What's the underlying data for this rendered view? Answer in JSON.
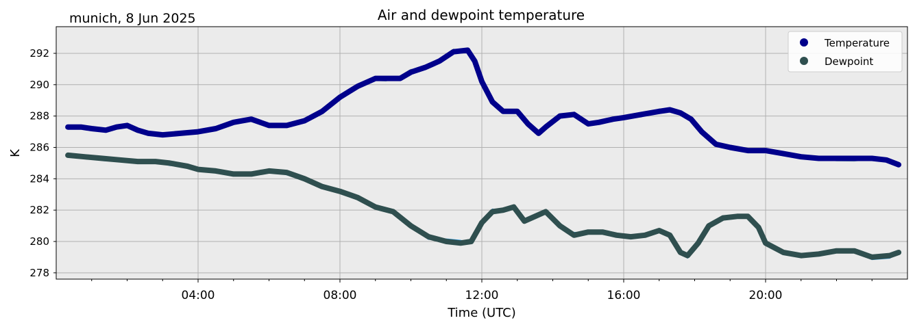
{
  "location_date": "munich, 8 Jun 2025",
  "chart_data": {
    "type": "line",
    "title": "Air and dewpoint temperature",
    "xlabel": "Time (UTC)",
    "ylabel": "K",
    "xlim": [
      0,
      24
    ],
    "ylim": [
      277.6,
      293.7
    ],
    "xticks": [
      "04:00",
      "08:00",
      "12:00",
      "16:00",
      "20:00"
    ],
    "xtick_hours": [
      4,
      8,
      12,
      16,
      20
    ],
    "yticks": [
      278,
      280,
      282,
      284,
      286,
      288,
      290,
      292
    ],
    "grid": true,
    "legend_position": "top-right",
    "series": [
      {
        "name": "Temperature",
        "color": "#00008b",
        "raw_color": "#7fa8a8",
        "x": [
          0.33,
          0.7,
          1.0,
          1.4,
          1.7,
          2.0,
          2.3,
          2.6,
          3.0,
          3.5,
          4.0,
          4.5,
          5.0,
          5.5,
          6.0,
          6.5,
          7.0,
          7.5,
          8.0,
          8.5,
          9.0,
          9.3,
          9.7,
          10.0,
          10.4,
          10.8,
          11.2,
          11.6,
          11.8,
          12.0,
          12.3,
          12.6,
          13.0,
          13.3,
          13.6,
          13.8,
          14.2,
          14.6,
          15.0,
          15.3,
          15.7,
          16.0,
          16.5,
          17.0,
          17.3,
          17.6,
          17.9,
          18.2,
          18.6,
          19.0,
          19.5,
          20.0,
          20.5,
          21.0,
          21.5,
          22.0,
          22.5,
          23.0,
          23.4,
          23.75
        ],
        "y": [
          287.3,
          287.3,
          287.2,
          287.1,
          287.3,
          287.4,
          287.1,
          286.9,
          286.8,
          286.9,
          287.0,
          287.2,
          287.6,
          287.8,
          287.4,
          287.4,
          287.7,
          288.3,
          289.2,
          289.9,
          290.4,
          290.4,
          290.4,
          290.8,
          291.1,
          291.5,
          292.1,
          292.2,
          291.5,
          290.2,
          288.9,
          288.3,
          288.3,
          287.5,
          286.9,
          287.3,
          288.0,
          288.1,
          287.5,
          287.6,
          287.8,
          287.9,
          288.1,
          288.3,
          288.4,
          288.2,
          287.8,
          287.0,
          286.2,
          286.0,
          285.8,
          285.8,
          285.6,
          285.4,
          285.3,
          285.3,
          285.3,
          285.3,
          285.2,
          284.9
        ]
      },
      {
        "name": "Dewpoint",
        "color": "#2f4f4f",
        "raw_color": "#1e9be8",
        "x": [
          0.33,
          0.8,
          1.3,
          1.8,
          2.3,
          2.8,
          3.2,
          3.7,
          4.0,
          4.5,
          5.0,
          5.5,
          6.0,
          6.5,
          7.0,
          7.5,
          8.0,
          8.5,
          9.0,
          9.5,
          10.0,
          10.5,
          11.0,
          11.4,
          11.7,
          12.0,
          12.3,
          12.6,
          12.9,
          13.2,
          13.5,
          13.8,
          14.2,
          14.6,
          15.0,
          15.4,
          15.8,
          16.2,
          16.6,
          17.0,
          17.3,
          17.6,
          17.8,
          18.1,
          18.4,
          18.8,
          19.2,
          19.5,
          19.8,
          20.0,
          20.5,
          21.0,
          21.5,
          22.0,
          22.5,
          23.0,
          23.5,
          23.75
        ],
        "y": [
          285.5,
          285.4,
          285.3,
          285.2,
          285.1,
          285.1,
          285.0,
          284.8,
          284.6,
          284.5,
          284.3,
          284.3,
          284.5,
          284.4,
          284.0,
          283.5,
          283.2,
          282.8,
          282.2,
          281.9,
          281.0,
          280.3,
          280.0,
          279.9,
          280.0,
          281.2,
          281.9,
          282.0,
          282.2,
          281.3,
          281.6,
          281.9,
          281.0,
          280.4,
          280.6,
          280.6,
          280.4,
          280.3,
          280.4,
          280.7,
          280.4,
          279.3,
          279.1,
          279.9,
          281.0,
          281.5,
          281.6,
          281.6,
          280.9,
          279.9,
          279.3,
          279.1,
          279.2,
          279.4,
          279.4,
          279.0,
          279.1,
          279.3
        ]
      }
    ]
  }
}
